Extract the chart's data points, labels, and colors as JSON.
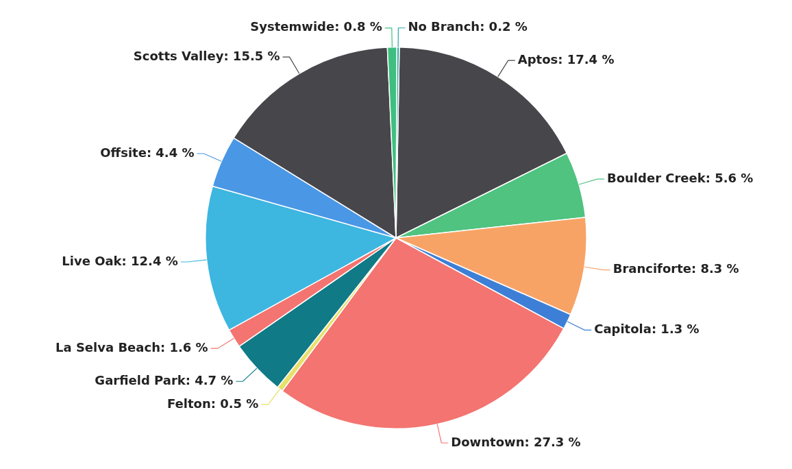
{
  "chart_data": {
    "type": "pie",
    "categories": [
      "Aptos",
      "Boulder Creek",
      "Branciforte",
      "Capitola",
      "Downtown",
      "Felton",
      "Garfield Park",
      "La Selva Beach",
      "Live Oak",
      "Offsite",
      "Scotts Valley",
      "Systemwide",
      "No Branch"
    ],
    "values": [
      17.4,
      5.6,
      8.3,
      1.3,
      27.3,
      0.5,
      4.7,
      1.6,
      12.4,
      4.4,
      15.5,
      0.8,
      0.2
    ],
    "colors": [
      "#46464b",
      "#4fc37f",
      "#f8a366",
      "#3d7fd6",
      "#f37470",
      "#e8e06a",
      "#107a86",
      "#f37470",
      "#3db6e0",
      "#4a97e6",
      "#46464b",
      "#3fbf7f",
      "#2aa6a0"
    ],
    "value_labels": [
      "17.4 %",
      "5.6 %",
      "8.3 %",
      "1.3 %",
      "27.3 %",
      "0.5 %",
      "4.7 %",
      "1.6 %",
      "12.4 %",
      "4.4 %",
      "15.5 %",
      "0.8 %",
      "0.2 %"
    ],
    "legend": false
  }
}
